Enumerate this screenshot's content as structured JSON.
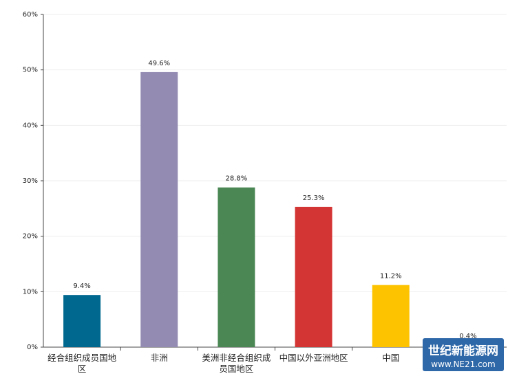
{
  "chart_data": {
    "type": "bar",
    "categories": [
      "经合组织成员国地区",
      "非洲",
      "美洲非经合组织成员国地区",
      "中国以外亚洲地区",
      "中国",
      null
    ],
    "values": [
      9.4,
      49.6,
      28.8,
      25.3,
      11.2,
      0.4
    ],
    "value_labels": [
      "9.4%",
      "49.6%",
      "28.8%",
      "25.3%",
      "11.2%",
      "0.4%"
    ],
    "colors": [
      "#00678f",
      "#948bb3",
      "#4a8754",
      "#d33534",
      "#fdc300",
      "#8c8c8c"
    ],
    "ylim": [
      0,
      60
    ],
    "yticks": [
      {
        "value": 0,
        "label": "0%"
      },
      {
        "value": 10,
        "label": "10%"
      },
      {
        "value": 20,
        "label": "20%"
      },
      {
        "value": 30,
        "label": "30%"
      },
      {
        "value": 40,
        "label": "40%"
      },
      {
        "value": 50,
        "label": "50%"
      },
      {
        "value": 60,
        "label": "60%"
      }
    ],
    "grid": true
  },
  "watermark": {
    "title": "世纪新能源网",
    "url": "www.NE21.com"
  }
}
